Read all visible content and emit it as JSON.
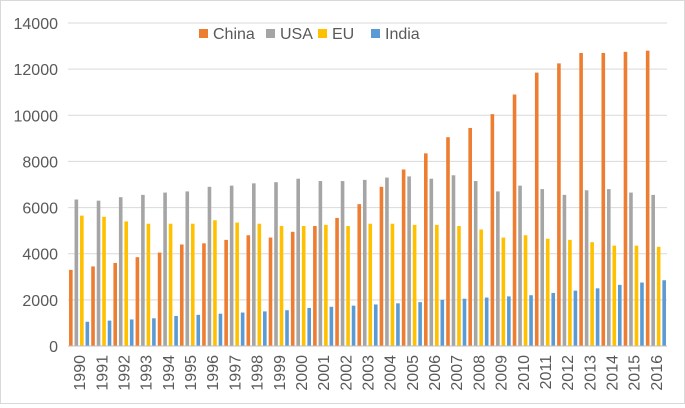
{
  "chart_data": {
    "type": "bar",
    "title": "",
    "xlabel": "",
    "ylabel": "",
    "ylim": [
      0,
      14000
    ],
    "yticks": [
      0,
      2000,
      4000,
      6000,
      8000,
      10000,
      12000,
      14000
    ],
    "grid": true,
    "legend_position": "top-center",
    "categories": [
      "1990",
      "1991",
      "1992",
      "1993",
      "1994",
      "1995",
      "1996",
      "1997",
      "1998",
      "1999",
      "2000",
      "2001",
      "2002",
      "2003",
      "2004",
      "2005",
      "2006",
      "2007",
      "2008",
      "2009",
      "2010",
      "2011",
      "2012",
      "2013",
      "2014",
      "2015",
      "2016"
    ],
    "series": [
      {
        "name": "China",
        "color": "#ED7D31",
        "values": [
          3300,
          3450,
          3600,
          3850,
          4050,
          4400,
          4450,
          4600,
          4800,
          4700,
          4950,
          5200,
          5550,
          6150,
          6900,
          7650,
          8350,
          9050,
          9450,
          10050,
          10900,
          11850,
          12250,
          12700,
          12700,
          12750,
          12800
        ]
      },
      {
        "name": "USA",
        "color": "#A5A5A5",
        "values": [
          6350,
          6300,
          6450,
          6550,
          6650,
          6700,
          6900,
          6950,
          7050,
          7100,
          7250,
          7150,
          7150,
          7200,
          7300,
          7350,
          7250,
          7400,
          7150,
          6700,
          6950,
          6800,
          6550,
          6750,
          6800,
          6650,
          6550
        ]
      },
      {
        "name": "EU",
        "color": "#FFC000",
        "values": [
          5650,
          5600,
          5400,
          5300,
          5300,
          5300,
          5450,
          5350,
          5300,
          5200,
          5200,
          5250,
          5200,
          5300,
          5300,
          5250,
          5250,
          5200,
          5050,
          4700,
          4800,
          4650,
          4600,
          4500,
          4350,
          4350,
          4300
        ]
      },
      {
        "name": "India",
        "color": "#5B9BD5",
        "values": [
          1050,
          1100,
          1150,
          1200,
          1300,
          1350,
          1400,
          1450,
          1500,
          1550,
          1650,
          1700,
          1750,
          1800,
          1850,
          1900,
          2000,
          2050,
          2100,
          2150,
          2200,
          2300,
          2400,
          2500,
          2650,
          2750,
          2850
        ]
      }
    ]
  }
}
